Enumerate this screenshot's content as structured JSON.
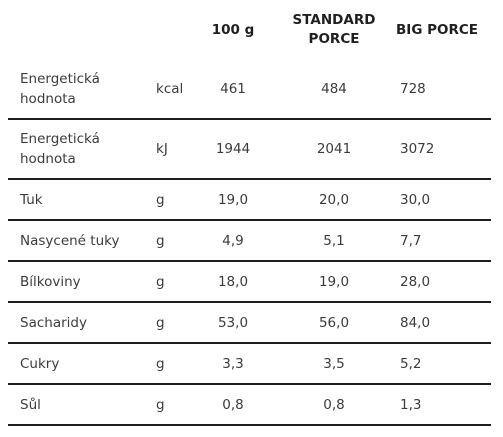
{
  "table": {
    "headers": {
      "label": "",
      "unit": "",
      "per_100g": "100 g",
      "standard_line1": "STANDARD",
      "standard_line2": "PORCE",
      "big": "BIG PORCE"
    },
    "rows": [
      {
        "label_line1": "Energetická",
        "label_line2": "hodnota",
        "unit": "kcal",
        "per_100g": "461",
        "standard": "484",
        "big": "728"
      },
      {
        "label_line1": "Energetická",
        "label_line2": "hodnota",
        "unit": "kJ",
        "per_100g": "1944",
        "standard": "2041",
        "big": "3072"
      },
      {
        "label_line1": "Tuk",
        "label_line2": "",
        "unit": "g",
        "per_100g": "19,0",
        "standard": "20,0",
        "big": "30,0"
      },
      {
        "label_line1": "Nasycené tuky",
        "label_line2": "",
        "unit": "g",
        "per_100g": "4,9",
        "standard": "5,1",
        "big": "7,7"
      },
      {
        "label_line1": "Bílkoviny",
        "label_line2": "",
        "unit": "g",
        "per_100g": "18,0",
        "standard": "19,0",
        "big": "28,0"
      },
      {
        "label_line1": "Sacharidy",
        "label_line2": "",
        "unit": "g",
        "per_100g": "53,0",
        "standard": "56,0",
        "big": "84,0"
      },
      {
        "label_line1": "Cukry",
        "label_line2": "",
        "unit": "g",
        "per_100g": "3,3",
        "standard": "3,5",
        "big": "5,2"
      },
      {
        "label_line1": "Sůl",
        "label_line2": "",
        "unit": "g",
        "per_100g": "0,8",
        "standard": "0,8",
        "big": "1,3"
      }
    ]
  }
}
